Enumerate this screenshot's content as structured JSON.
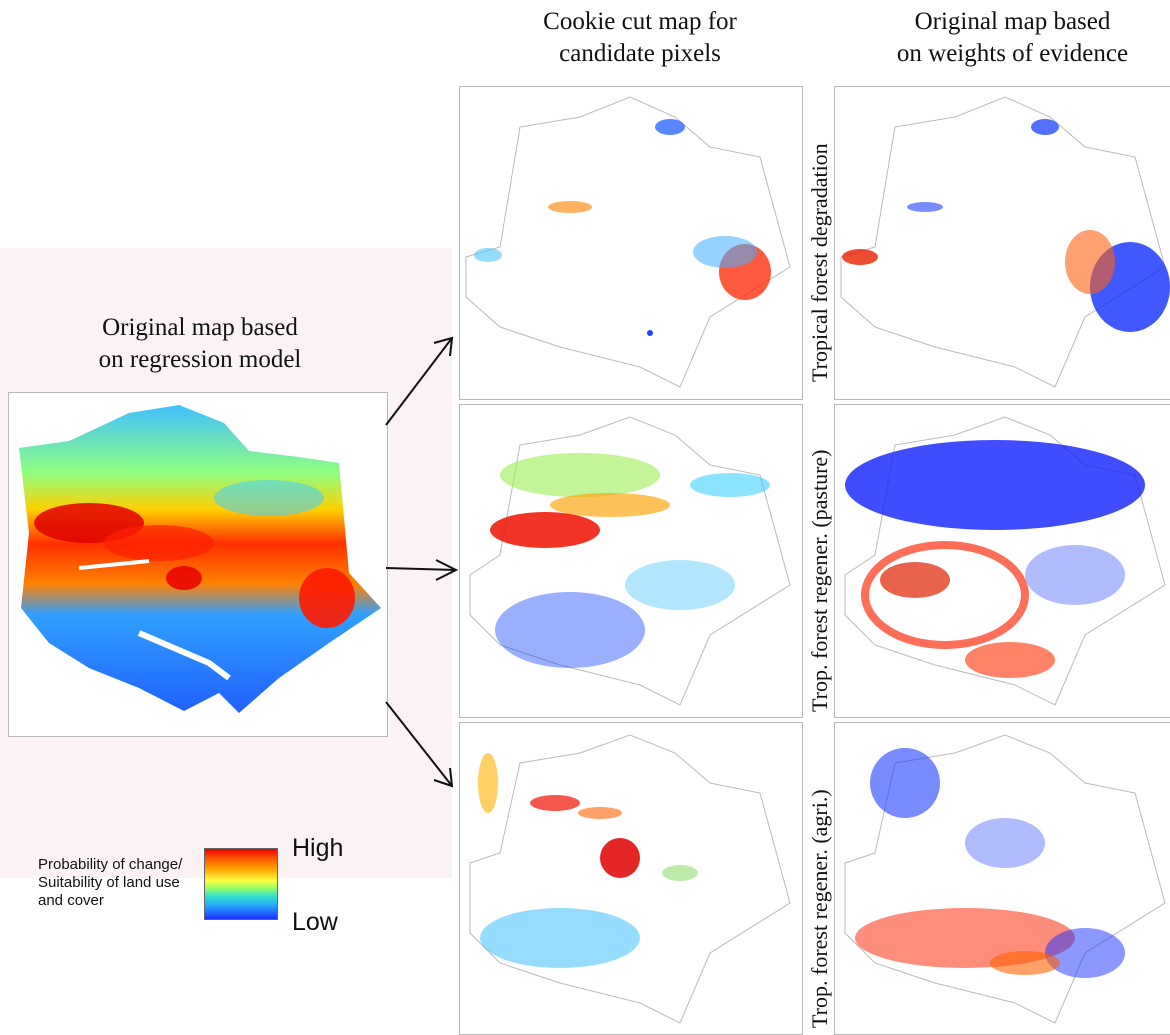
{
  "header": {
    "col1_line1": "Cookie cut map for",
    "col1_line2": "candidate pixels",
    "col2_line1": "Original map based",
    "col2_line2": "on weights of evidence"
  },
  "left": {
    "title_line1": "Original map based",
    "title_line2": "on regression model"
  },
  "rows": [
    {
      "label": "Tropical forest degradation"
    },
    {
      "label": "Trop. forest regener. (pasture)"
    },
    {
      "label": "Trop. forest regener. (agri.)"
    }
  ],
  "legend": {
    "caption_line1": "Probability of change/",
    "caption_line2": "Suitability of land use",
    "caption_line3": "and cover",
    "high": "High",
    "low": "Low",
    "colors": [
      "#e60000",
      "#ffa000",
      "#ffff40",
      "#30e0d0",
      "#1a30ff"
    ]
  }
}
